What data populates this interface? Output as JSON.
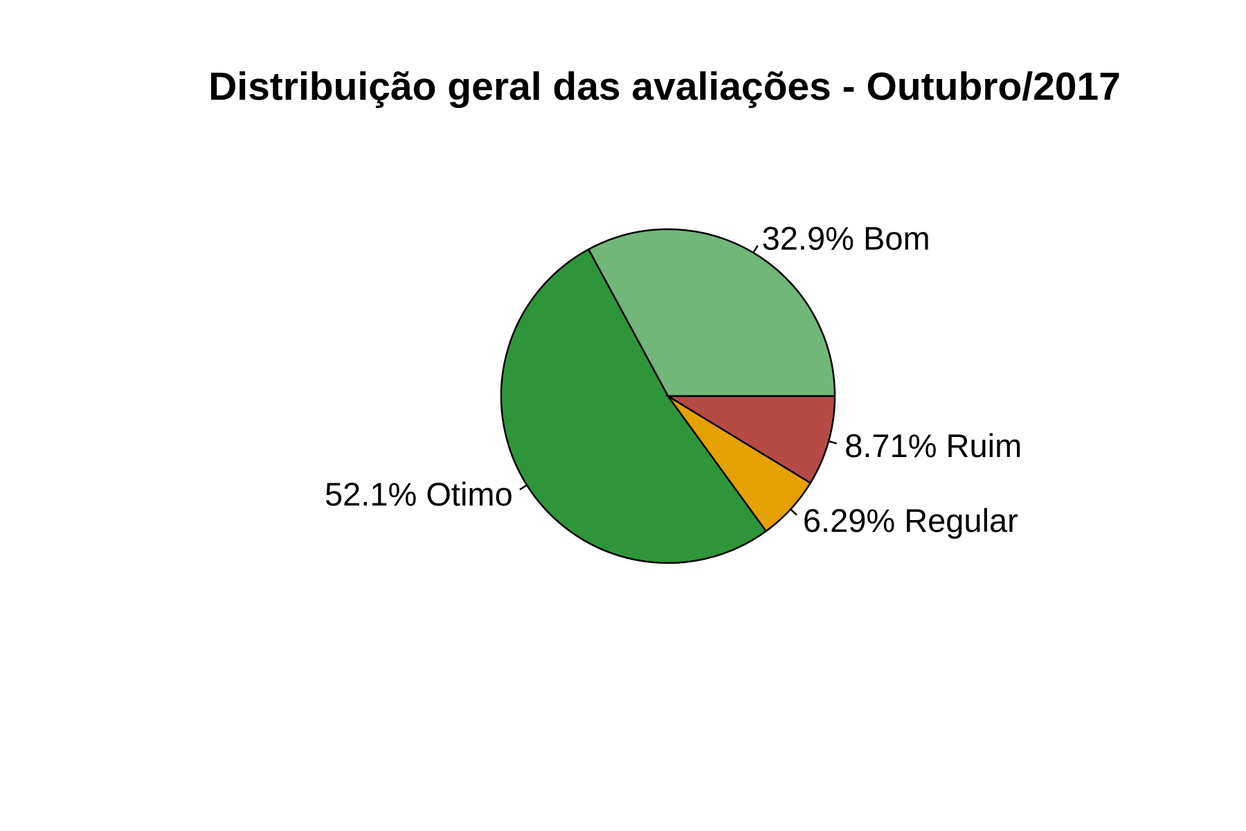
{
  "chart_data": {
    "type": "pie",
    "title": "Distribuição geral das avaliações - Outubro/2017",
    "slices": [
      {
        "name": "Bom",
        "percent": 32.9,
        "label": "32.9% Bom",
        "color": "#71b779"
      },
      {
        "name": "Otimo",
        "percent": 52.1,
        "label": "52.1% Otimo",
        "color": "#2e9638"
      },
      {
        "name": "Regular",
        "percent": 6.29,
        "label": "6.29% Regular",
        "color": "#e5a100"
      },
      {
        "name": "Ruim",
        "percent": 8.71,
        "label": "8.71% Ruim",
        "color": "#b64b45"
      }
    ],
    "start_angle_deg": 0,
    "direction": "counterclockwise",
    "legend": "none"
  }
}
